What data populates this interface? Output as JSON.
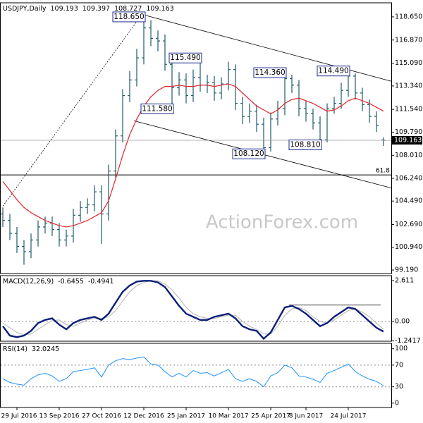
{
  "chart_data": [
    {
      "type": "ohlc",
      "title": "USDJPY,Daily",
      "watermark": "ActionForex.com",
      "categories": [
        null,
        null,
        "29 Jul 2016",
        null,
        null,
        null,
        null,
        null,
        "13 Sep 2016",
        null,
        null,
        null,
        null,
        null,
        "27 Oct 2016",
        null,
        null,
        null,
        null,
        null,
        "12 Dec 2016",
        null,
        null,
        null,
        null,
        null,
        "25 Jan 2017",
        null,
        null,
        null,
        null,
        null,
        "10 Mar 2017",
        null,
        null,
        null,
        null,
        null,
        "25 Apr 2017",
        null,
        null,
        null,
        null,
        "8 Jun 2017",
        null,
        null,
        null,
        null,
        null,
        "24 Jul 2017",
        null,
        null,
        null,
        null,
        null
      ],
      "open": [
        103.5,
        103.0,
        102.0,
        101.0,
        100.6,
        101.5,
        102.5,
        102.8,
        102.3,
        101.5,
        101.8,
        103.4,
        104.0,
        104.2,
        105.2,
        103.5,
        106.8,
        109.5,
        112.6,
        113.8,
        115.5,
        117.8,
        117.0,
        116.8,
        115.0,
        113.2,
        113.8,
        112.6,
        114.0,
        113.4,
        113.6,
        112.8,
        113.5,
        114.6,
        112.0,
        111.0,
        111.4,
        110.4,
        108.6,
        110.8,
        111.6,
        113.9,
        113.4,
        111.6,
        111.2,
        110.5,
        109.2,
        111.6,
        112.0,
        113.0,
        114.1,
        112.8,
        111.9,
        111.0,
        109.193
      ],
      "high": [
        104.0,
        103.5,
        102.5,
        101.5,
        102.0,
        103.0,
        103.3,
        103.3,
        102.8,
        102.3,
        103.9,
        104.5,
        104.7,
        105.7,
        105.7,
        107.3,
        110.0,
        113.1,
        114.5,
        116.2,
        118.65,
        118.4,
        117.6,
        117.3,
        115.5,
        114.4,
        114.3,
        114.6,
        115.49,
        114.2,
        114.1,
        114.0,
        115.2,
        115.0,
        112.5,
        112.0,
        111.9,
        110.9,
        111.3,
        112.2,
        114.36,
        114.2,
        113.8,
        112.2,
        111.6,
        111.0,
        112.0,
        112.5,
        113.6,
        114.49,
        114.3,
        113.2,
        112.3,
        111.4,
        109.397
      ],
      "low": [
        102.5,
        101.5,
        100.5,
        99.6,
        100.1,
        101.0,
        102.0,
        101.8,
        101.0,
        101.0,
        101.3,
        102.9,
        103.5,
        103.7,
        101.2,
        103.0,
        106.3,
        109.0,
        112.1,
        113.3,
        115.0,
        116.4,
        116.0,
        114.5,
        111.58,
        112.6,
        112.0,
        112.1,
        112.9,
        112.8,
        112.2,
        112.3,
        113.0,
        111.5,
        110.4,
        110.5,
        109.8,
        108.12,
        108.3,
        110.3,
        111.1,
        112.8,
        111.0,
        110.6,
        110.0,
        108.81,
        109.0,
        111.2,
        111.6,
        112.5,
        112.3,
        111.4,
        110.5,
        109.8,
        108.727
      ],
      "close": [
        103.0,
        102.0,
        101.0,
        100.6,
        101.5,
        102.5,
        102.8,
        102.3,
        101.5,
        101.8,
        103.4,
        104.0,
        104.2,
        105.2,
        103.5,
        106.8,
        109.5,
        112.6,
        113.8,
        115.5,
        117.8,
        117.0,
        116.8,
        115.0,
        113.2,
        113.8,
        112.6,
        114.0,
        113.4,
        113.6,
        112.8,
        113.5,
        114.6,
        112.0,
        111.0,
        111.4,
        110.4,
        108.6,
        110.8,
        111.6,
        113.9,
        113.4,
        111.6,
        111.2,
        110.5,
        109.2,
        111.6,
        112.0,
        113.0,
        114.1,
        112.8,
        111.9,
        111.0,
        110.3,
        109.163
      ],
      "color": "#1f5a6a",
      "ma": {
        "color": "#e3242b",
        "values": [
          106.0,
          105.3,
          104.6,
          104.0,
          103.6,
          103.3,
          103.0,
          102.8,
          102.6,
          102.5,
          102.6,
          102.8,
          103.0,
          103.3,
          103.6,
          104.5,
          106.2,
          108.0,
          109.6,
          110.8,
          111.8,
          112.5,
          113.0,
          113.3,
          113.3,
          113.4,
          113.3,
          113.3,
          113.4,
          113.4,
          113.3,
          113.4,
          113.5,
          113.3,
          112.8,
          112.3,
          111.8,
          111.5,
          111.2,
          111.5,
          112.0,
          112.3,
          112.4,
          112.2,
          112.0,
          111.7,
          111.4,
          111.5,
          111.8,
          112.2,
          112.4,
          112.2,
          112.0,
          111.7,
          111.4
        ]
      },
      "ylim": [
        98.92,
        119.73
      ],
      "yticks": [
        {
          "value": 118.65,
          "label": "118.650"
        },
        {
          "value": 116.87,
          "label": "116.870"
        },
        {
          "value": 115.09,
          "label": "115.090"
        },
        {
          "value": 113.34,
          "label": "113.340"
        },
        {
          "value": 111.54,
          "label": "111.540"
        },
        {
          "value": 109.79,
          "label": "109.790"
        },
        {
          "value": 108.01,
          "label": "108.010"
        },
        {
          "value": 106.24,
          "label": "106.240"
        },
        {
          "value": 104.49,
          "label": "104.490"
        },
        {
          "value": 102.69,
          "label": "102.690"
        },
        {
          "value": 100.94,
          "label": "100.940"
        },
        {
          "value": 99.19,
          "label": "99.190"
        }
      ],
      "trend_lines": [
        {
          "x": [
            0,
            19.6
          ],
          "y": [
            104.1,
            118.75
          ],
          "style": "dotted"
        },
        {
          "x": [
            20,
            55.1
          ],
          "y": [
            118.8,
            113.7
          ],
          "style": "solid"
        },
        {
          "x": [
            18.6,
            55.1
          ],
          "y": [
            110.66,
            105.5
          ],
          "style": "solid"
        }
      ],
      "fib_level": {
        "value": 106.5,
        "label": "61.8"
      },
      "annotations": [
        {
          "x": 20,
          "value": 118.65,
          "label": "118.650"
        },
        {
          "x": 28,
          "value": 115.49,
          "label": "115.490"
        },
        {
          "x": 40,
          "value": 114.36,
          "label": "114.360"
        },
        {
          "x": 49,
          "value": 114.49,
          "label": "114.490"
        },
        {
          "x": 24,
          "value": 111.58,
          "label": "111.580"
        },
        {
          "x": 37,
          "value": 108.12,
          "label": "108.120"
        },
        {
          "x": 45,
          "value": 108.81,
          "label": "108.810"
        }
      ]
    },
    {
      "type": "line",
      "title": "MACD(12,26,9)",
      "series": [
        {
          "color": "#0b1f78",
          "values": [
            -0.3,
            -0.9,
            -1.0,
            -0.9,
            -0.6,
            -0.1,
            0.1,
            0.2,
            -0.2,
            -0.5,
            -0.1,
            0.1,
            0.2,
            0.3,
            0.1,
            0.5,
            1.2,
            1.9,
            2.3,
            2.55,
            2.6,
            2.6,
            2.5,
            2.2,
            1.6,
            1.0,
            0.5,
            0.3,
            0.1,
            0.1,
            0.3,
            0.4,
            0.5,
            0.2,
            -0.3,
            -0.5,
            -0.6,
            -1.1,
            -0.7,
            0.1,
            0.9,
            1.0,
            0.8,
            0.5,
            0.1,
            -0.3,
            -0.1,
            0.3,
            0.6,
            0.9,
            0.8,
            0.4,
            0.0,
            -0.4,
            -0.6455
          ]
        },
        {
          "color": "#b4b4b4",
          "values": [
            -0.1,
            -0.4,
            -0.7,
            -0.85,
            -0.8,
            -0.5,
            -0.2,
            0.05,
            0.1,
            -0.2,
            -0.3,
            -0.1,
            0.1,
            0.2,
            0.2,
            0.3,
            0.7,
            1.3,
            1.9,
            2.3,
            2.5,
            2.6,
            2.6,
            2.4,
            2.0,
            1.5,
            0.9,
            0.5,
            0.3,
            0.2,
            0.2,
            0.3,
            0.4,
            0.4,
            0.0,
            -0.3,
            -0.5,
            -0.8,
            -0.8,
            -0.3,
            0.4,
            0.8,
            0.9,
            0.7,
            0.3,
            0.0,
            -0.1,
            0.1,
            0.4,
            0.7,
            0.8,
            0.6,
            0.3,
            -0.1,
            -0.4941
          ]
        }
      ],
      "ylim": [
        -1.26,
        2.93
      ],
      "yticks": [
        2.611,
        {
          "value": 0,
          "label": "0.00"
        },
        -1.2417
      ],
      "levels": [
        0
      ],
      "trend_lines": [
        {
          "x": [
            40.6,
            53.6
          ],
          "y": [
            1.05,
            1.05
          ],
          "style": "solid"
        }
      ]
    },
    {
      "type": "line",
      "title": "RSI(14)",
      "series": [
        {
          "color": "#1e90ff",
          "values": [
            45,
            38,
            35,
            33,
            45,
            52,
            55,
            50,
            40,
            45,
            58,
            60,
            62,
            65,
            48,
            70,
            78,
            82,
            80,
            83,
            85,
            72,
            70,
            58,
            48,
            55,
            48,
            60,
            55,
            56,
            50,
            56,
            62,
            45,
            40,
            45,
            40,
            30,
            50,
            56,
            70,
            65,
            50,
            48,
            44,
            38,
            55,
            60,
            66,
            72,
            58,
            50,
            44,
            40,
            32.0245
          ]
        }
      ],
      "ylim": [
        -8,
        110
      ],
      "yticks": [
        100,
        70,
        30,
        0
      ],
      "levels": [
        70,
        30
      ]
    }
  ]
}
